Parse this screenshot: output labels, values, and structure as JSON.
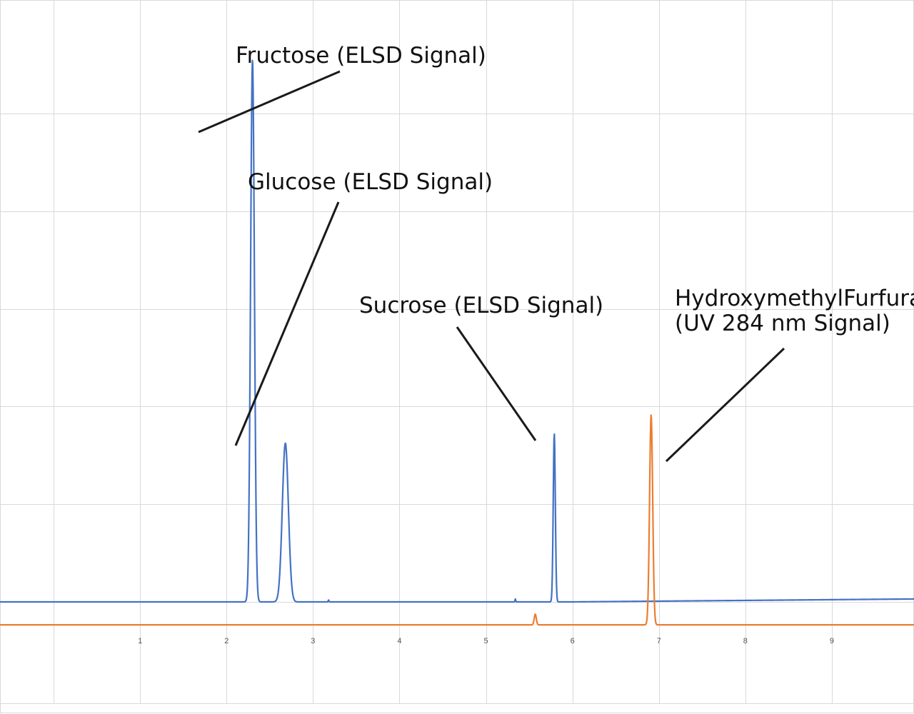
{
  "chart_data": {
    "type": "line",
    "title": "",
    "xlabel": "",
    "ylabel": "",
    "xlim": [
      -0.62,
      9.95
    ],
    "ylim": [
      -0.35,
      1.0
    ],
    "grid": true,
    "legend": "none",
    "x_ticks": [
      "1",
      "2",
      "3",
      "4",
      "5",
      "6",
      "7",
      "8",
      "9"
    ],
    "y_gridlines": [
      0,
      0.2,
      0.4,
      0.6,
      0.8,
      1.0
    ],
    "series": [
      {
        "color": "#4472c4",
        "baseline": 0.0,
        "drift": [
          [
            -0.62,
            0.0
          ],
          [
            6.0,
            0.0
          ],
          [
            9.95,
            0.006
          ]
        ],
        "peaks": [
          {
            "x": 2.3,
            "height": 1.11,
            "width": 0.022
          },
          {
            "x": 2.68,
            "height": 0.325,
            "width": 0.035
          },
          {
            "x": 5.79,
            "height": 0.345,
            "width": 0.012
          },
          {
            "x": 3.18,
            "height": 0.004,
            "width": 0.004
          },
          {
            "x": 5.34,
            "height": 0.006,
            "width": 0.004
          }
        ]
      },
      {
        "color": "#ed7d31",
        "baseline": -0.047,
        "drift": [
          [
            -0.62,
            -0.047
          ],
          [
            9.95,
            -0.047
          ]
        ],
        "peaks": [
          {
            "x": 6.91,
            "height": 0.43,
            "width": 0.018
          },
          {
            "x": 5.57,
            "height": 0.022,
            "width": 0.012
          }
        ]
      }
    ],
    "annotations": [
      {
        "lines": [
          "Fructose (ELSD Signal)"
        ],
        "target_x": 2.3,
        "target_series": 0
      },
      {
        "lines": [
          "Glucose (ELSD Signal)"
        ],
        "target_x": 2.72,
        "target_series": 0
      },
      {
        "lines": [
          "Sucrose (ELSD Signal)"
        ],
        "target_x": 5.78,
        "target_series": 0
      },
      {
        "lines": [
          "HydroxymethylFurfural",
          "(UV 284 nm Signal)"
        ],
        "target_x": 6.93,
        "target_series": 1
      }
    ]
  }
}
